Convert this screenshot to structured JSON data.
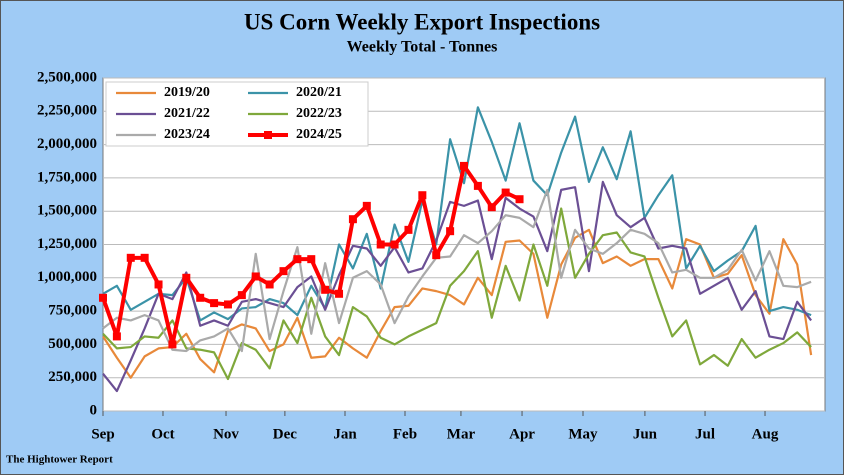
{
  "chart_data": {
    "type": "line",
    "title": "US Corn Weekly Export Inspections",
    "subtitle": "Weekly Total - Tonnes",
    "source": "The Hightower Report",
    "legend": "upper left",
    "grid": true,
    "x": [
      0,
      1,
      2,
      3,
      4,
      5,
      6,
      7,
      8,
      9,
      10,
      11,
      12,
      13,
      14,
      15,
      16,
      17,
      18,
      19,
      20,
      21,
      22,
      23,
      24,
      25,
      26,
      27,
      28,
      29,
      30,
      31,
      32,
      33,
      34,
      35,
      36,
      37,
      38,
      39,
      40,
      41,
      42,
      43,
      44,
      45,
      46,
      47,
      48,
      49,
      50,
      51
    ],
    "xlim": [
      0,
      52
    ],
    "xticks": [
      {
        "value": 0,
        "label": "Sep"
      },
      {
        "value": 4.32,
        "label": "Oct"
      },
      {
        "value": 8.86,
        "label": "Nov"
      },
      {
        "value": 13.1,
        "label": "Dec"
      },
      {
        "value": 17.43,
        "label": "Jan"
      },
      {
        "value": 21.75,
        "label": "Feb"
      },
      {
        "value": 25.78,
        "label": "Mar"
      },
      {
        "value": 30.18,
        "label": "Apr"
      },
      {
        "value": 34.57,
        "label": "May"
      },
      {
        "value": 39.03,
        "label": "Jun"
      },
      {
        "value": 43.36,
        "label": "Jul"
      },
      {
        "value": 47.68,
        "label": "Aug"
      }
    ],
    "ylim": [
      0,
      2500000
    ],
    "yticks": [
      0,
      {
        "value": 250000,
        "label": "250,000"
      },
      {
        "value": 500000,
        "label": "500,000"
      },
      {
        "value": 750000,
        "label": "750,000"
      },
      {
        "value": 1000000,
        "label": "1,000,000"
      },
      {
        "value": 1250000,
        "label": "1,250,000"
      },
      {
        "value": 1500000,
        "label": "1,500,000"
      },
      {
        "value": 1750000,
        "label": "1,750,000"
      },
      {
        "value": 2000000,
        "label": "2,000,000"
      },
      {
        "value": 2250000,
        "label": "2,250,000"
      },
      {
        "value": 2500000,
        "label": "2,500,000"
      }
    ],
    "series": [
      {
        "name": "2019/20",
        "color": "#e8893a",
        "values": [
          560000,
          400000,
          250000,
          410000,
          470000,
          480000,
          580000,
          390000,
          290000,
          600000,
          650000,
          620000,
          450000,
          500000,
          700000,
          400000,
          410000,
          550000,
          470000,
          400000,
          600000,
          780000,
          790000,
          920000,
          900000,
          870000,
          800000,
          1000000,
          870000,
          1270000,
          1280000,
          1180000,
          700000,
          1100000,
          1300000,
          1360000,
          1110000,
          1160000,
          1090000,
          1140000,
          1140000,
          920000,
          1290000,
          1250000,
          1000000,
          1030000,
          1170000,
          870000,
          730000,
          1290000,
          1100000,
          420000
        ]
      },
      {
        "name": "2020/21",
        "color": "#3b93a8",
        "values": [
          880000,
          940000,
          760000,
          820000,
          880000,
          870000,
          1000000,
          680000,
          740000,
          690000,
          770000,
          780000,
          840000,
          810000,
          720000,
          940000,
          770000,
          1250000,
          1070000,
          1330000,
          920000,
          1400000,
          1120000,
          1580000,
          1250000,
          2040000,
          1710000,
          2280000,
          2020000,
          1730000,
          2160000,
          1730000,
          1620000,
          1940000,
          2210000,
          1720000,
          1980000,
          1740000,
          2100000,
          1450000,
          1620000,
          1770000,
          1070000,
          1240000,
          1050000,
          1130000,
          1200000,
          1390000,
          750000,
          780000,
          760000,
          720000
        ]
      },
      {
        "name": "2021/22",
        "color": "#6b4f94",
        "values": [
          280000,
          150000,
          380000,
          620000,
          880000,
          840000,
          1040000,
          640000,
          680000,
          640000,
          820000,
          840000,
          810000,
          780000,
          930000,
          1010000,
          760000,
          1020000,
          1240000,
          1220000,
          1090000,
          1230000,
          1040000,
          1070000,
          1280000,
          1570000,
          1540000,
          1580000,
          1140000,
          1600000,
          1520000,
          1460000,
          1200000,
          1660000,
          1680000,
          1050000,
          1720000,
          1470000,
          1380000,
          1450000,
          1220000,
          1240000,
          1220000,
          880000,
          940000,
          1000000,
          760000,
          900000,
          560000,
          540000,
          820000,
          680000
        ]
      },
      {
        "name": "2022/23",
        "color": "#7fa83b",
        "values": [
          580000,
          470000,
          480000,
          560000,
          550000,
          680000,
          470000,
          460000,
          440000,
          240000,
          510000,
          460000,
          320000,
          680000,
          510000,
          850000,
          560000,
          420000,
          780000,
          710000,
          550000,
          500000,
          560000,
          610000,
          660000,
          940000,
          1050000,
          1200000,
          700000,
          1090000,
          830000,
          1250000,
          940000,
          1520000,
          1000000,
          1180000,
          1320000,
          1340000,
          1190000,
          1160000,
          850000,
          560000,
          680000,
          350000,
          420000,
          340000,
          540000,
          400000,
          460000,
          510000,
          590000,
          480000
        ]
      },
      {
        "name": "2023/24",
        "color": "#aaaaaa",
        "values": [
          620000,
          700000,
          680000,
          720000,
          680000,
          460000,
          450000,
          530000,
          560000,
          620000,
          450000,
          1180000,
          540000,
          900000,
          1230000,
          580000,
          1110000,
          660000,
          1000000,
          1050000,
          950000,
          660000,
          860000,
          1010000,
          1150000,
          1160000,
          1320000,
          1260000,
          1350000,
          1470000,
          1450000,
          1380000,
          1660000,
          1000000,
          1360000,
          1220000,
          1180000,
          1260000,
          1360000,
          1330000,
          1260000,
          1040000,
          1060000,
          1000000,
          1000000,
          1060000,
          1210000,
          980000,
          1200000,
          940000,
          930000,
          970000
        ]
      },
      {
        "name": "2024/25",
        "color": "#ff0000",
        "markers": true,
        "values": [
          850000,
          560000,
          1150000,
          1150000,
          950000,
          500000,
          1000000,
          850000,
          810000,
          800000,
          870000,
          1010000,
          950000,
          1050000,
          1140000,
          1140000,
          910000,
          880000,
          1440000,
          1540000,
          1250000,
          1250000,
          1360000,
          1620000,
          1170000,
          1350000,
          1840000,
          1690000,
          1530000,
          1640000,
          1590000,
          null,
          null,
          null,
          null,
          null,
          null,
          null,
          null,
          null,
          null,
          null,
          null,
          null,
          null,
          null,
          null,
          null,
          null,
          null,
          null,
          null
        ]
      }
    ]
  }
}
